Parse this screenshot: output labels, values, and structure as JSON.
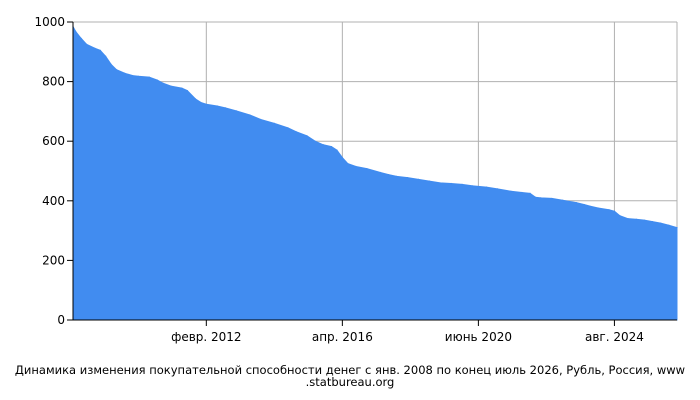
{
  "chart_data": {
    "type": "area",
    "caption": "Динамика изменения покупательной способности денег с янв. 2008 по конец июль 2026, Рубль, Россия, www .statbureau.org",
    "x_range": [
      "2008-01",
      "2026-07"
    ],
    "ylim": [
      0,
      1000
    ],
    "y_ticks": [
      0,
      200,
      400,
      600,
      800,
      1000
    ],
    "x_ticks": [
      {
        "date": "2012-02",
        "label": "февр. 2012"
      },
      {
        "date": "2016-04",
        "label": "апр. 2016"
      },
      {
        "date": "2020-06",
        "label": "июнь 2020"
      },
      {
        "date": "2024-08",
        "label": "авг. 2024"
      }
    ],
    "grid": true,
    "color": "#418CF0",
    "series": [
      {
        "points": [
          [
            "2008-01",
            985
          ],
          [
            "2008-02",
            968
          ],
          [
            "2008-04",
            945
          ],
          [
            "2008-06",
            925
          ],
          [
            "2008-09",
            912
          ],
          [
            "2008-11",
            905
          ],
          [
            "2009-01",
            885
          ],
          [
            "2009-03",
            858
          ],
          [
            "2009-05",
            840
          ],
          [
            "2009-08",
            828
          ],
          [
            "2009-11",
            820
          ],
          [
            "2010-01",
            818
          ],
          [
            "2010-05",
            815
          ],
          [
            "2010-08",
            805
          ],
          [
            "2010-10",
            795
          ],
          [
            "2011-01",
            785
          ],
          [
            "2011-05",
            778
          ],
          [
            "2011-07",
            770
          ],
          [
            "2011-10",
            742
          ],
          [
            "2011-12",
            730
          ],
          [
            "2012-02",
            724
          ],
          [
            "2012-06",
            718
          ],
          [
            "2012-09",
            712
          ],
          [
            "2013-01",
            702
          ],
          [
            "2013-06",
            688
          ],
          [
            "2013-10",
            673
          ],
          [
            "2014-03",
            660
          ],
          [
            "2014-08",
            645
          ],
          [
            "2014-11",
            632
          ],
          [
            "2015-03",
            618
          ],
          [
            "2015-06",
            600
          ],
          [
            "2015-09",
            588
          ],
          [
            "2015-12",
            582
          ],
          [
            "2016-02",
            570
          ],
          [
            "2016-04",
            545
          ],
          [
            "2016-06",
            525
          ],
          [
            "2016-09",
            515
          ],
          [
            "2017-01",
            508
          ],
          [
            "2017-06",
            495
          ],
          [
            "2017-09",
            488
          ],
          [
            "2017-12",
            482
          ],
          [
            "2018-04",
            478
          ],
          [
            "2018-08",
            472
          ],
          [
            "2018-12",
            466
          ],
          [
            "2019-04",
            460
          ],
          [
            "2019-08",
            458
          ],
          [
            "2019-12",
            455
          ],
          [
            "2020-04",
            450
          ],
          [
            "2020-09",
            446
          ],
          [
            "2021-01",
            440
          ],
          [
            "2021-06",
            432
          ],
          [
            "2021-10",
            428
          ],
          [
            "2022-01",
            425
          ],
          [
            "2022-03",
            412
          ],
          [
            "2022-05",
            410
          ],
          [
            "2022-09",
            408
          ],
          [
            "2023-01",
            402
          ],
          [
            "2023-06",
            394
          ],
          [
            "2023-09",
            387
          ],
          [
            "2023-11",
            382
          ],
          [
            "2024-02",
            376
          ],
          [
            "2024-06",
            370
          ],
          [
            "2024-08",
            365
          ],
          [
            "2024-10",
            350
          ],
          [
            "2025-01",
            340
          ],
          [
            "2025-04",
            338
          ],
          [
            "2025-07",
            335
          ],
          [
            "2025-10",
            330
          ],
          [
            "2026-01",
            325
          ],
          [
            "2026-04",
            318
          ],
          [
            "2026-07",
            310
          ]
        ]
      }
    ]
  }
}
